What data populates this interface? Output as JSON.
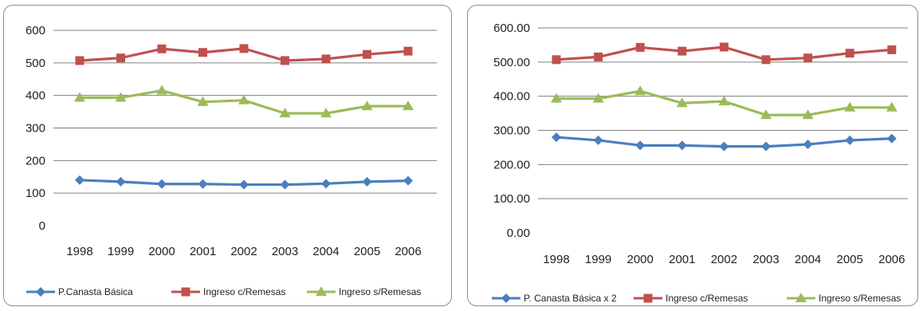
{
  "chart_data": [
    {
      "type": "line",
      "x": [
        "1998",
        "1999",
        "2000",
        "2001",
        "2002",
        "2003",
        "2004",
        "2005",
        "2006"
      ],
      "ylim": [
        0,
        600
      ],
      "yticks": [
        "0",
        "100",
        "200",
        "300",
        "400",
        "500",
        "600"
      ],
      "grid": true,
      "legend": "bottom",
      "series": [
        {
          "name": "P.Canasta Básica",
          "color": "#4a7ebf",
          "marker": "diamond",
          "values": [
            140,
            135,
            128,
            128,
            126,
            126,
            129,
            135,
            138
          ]
        },
        {
          "name": "Ingreso c/Remesas",
          "color": "#c0504d",
          "marker": "square",
          "values": [
            507,
            515,
            543,
            532,
            544,
            507,
            512,
            526,
            536
          ]
        },
        {
          "name": "Ingreso s/Remesas",
          "color": "#9bbb59",
          "marker": "triangle",
          "values": [
            393,
            393,
            415,
            380,
            385,
            345,
            345,
            367,
            367
          ]
        }
      ]
    },
    {
      "type": "line",
      "x": [
        "1998",
        "1999",
        "2000",
        "2001",
        "2002",
        "2003",
        "2004",
        "2005",
        "2006"
      ],
      "ylim": [
        0,
        600
      ],
      "yticks": [
        "0.00",
        "100.00",
        "200.00",
        "300.00",
        "400.00",
        "500.00",
        "600.00"
      ],
      "grid": true,
      "legend": "bottom",
      "series": [
        {
          "name": "P. Canasta Básica x 2",
          "color": "#4a7ebf",
          "marker": "diamond",
          "values": [
            280,
            271,
            256,
            256,
            253,
            253,
            259,
            271,
            276
          ]
        },
        {
          "name": "Ingreso c/Remesas",
          "color": "#c0504d",
          "marker": "square",
          "values": [
            507,
            515,
            543,
            532,
            544,
            507,
            512,
            526,
            536
          ]
        },
        {
          "name": "Ingreso s/Remesas",
          "color": "#9bbb59",
          "marker": "triangle",
          "values": [
            393,
            393,
            415,
            380,
            385,
            345,
            345,
            367,
            367
          ]
        }
      ]
    }
  ]
}
